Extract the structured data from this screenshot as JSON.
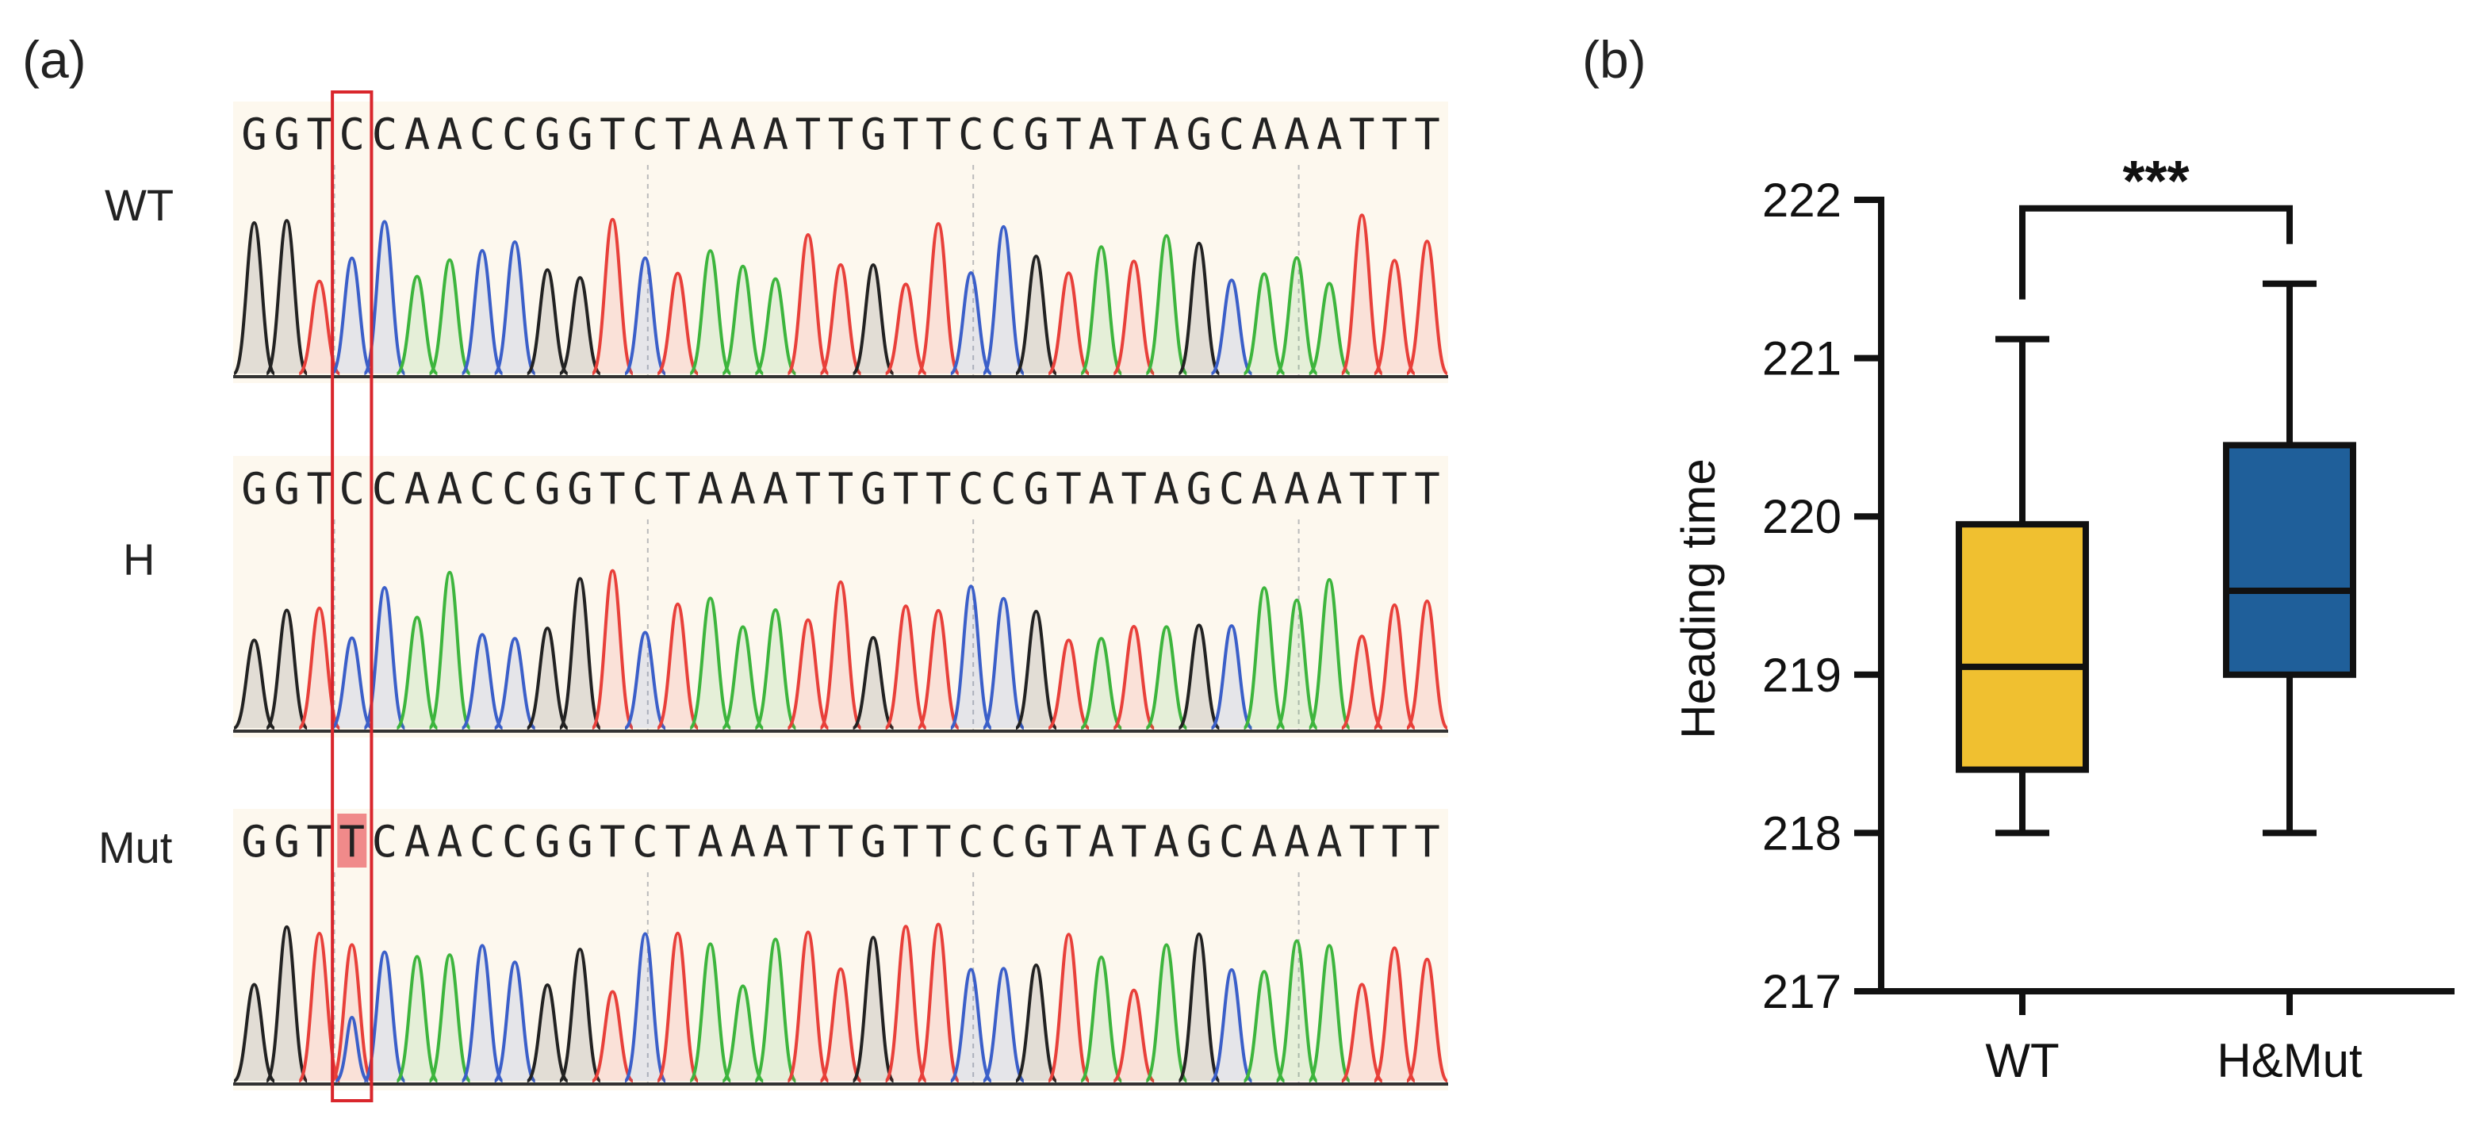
{
  "panel_a": {
    "label": "(a)",
    "tracks": [
      {
        "name": "WT",
        "sequence": "GGTCCAACCGGTCTAAATTGTTCCGTATAGCAAATTT",
        "highlight_index": null
      },
      {
        "name": "H",
        "sequence": "GGTCCAACCGGTCTAAATTGTTCCGTATAGCAAATTT",
        "highlight_index": null
      },
      {
        "name": "Mut",
        "sequence": "GGTTCAACCGGTCTAAATTGTTCCGTATAGCAAATTT",
        "highlight_index": 3
      }
    ],
    "marked_position_index": 3,
    "colors": {
      "A": "#3db53d",
      "C": "#3b5fc9",
      "G": "#222222",
      "T": "#e8403a",
      "background": "#fdf8ee",
      "marker": "#d9262c"
    }
  },
  "panel_b": {
    "label": "(b)",
    "chart_data": {
      "type": "boxplot",
      "ylabel": "Heading time",
      "ylim": [
        217,
        222
      ],
      "yticks": [
        "217",
        "218",
        "219",
        "220",
        "221",
        "222"
      ],
      "significance": "***",
      "groups": [
        {
          "name": "WT",
          "whisker_low": 218.0,
          "q1": 218.4,
          "median": 219.05,
          "q3": 219.95,
          "whisker_high": 221.12,
          "color": "#f0c030"
        },
        {
          "name": "H&Mut",
          "whisker_low": 218.0,
          "q1": 219.0,
          "median": 219.53,
          "q3": 220.45,
          "whisker_high": 221.47,
          "color": "#1f5f9a"
        }
      ]
    }
  }
}
